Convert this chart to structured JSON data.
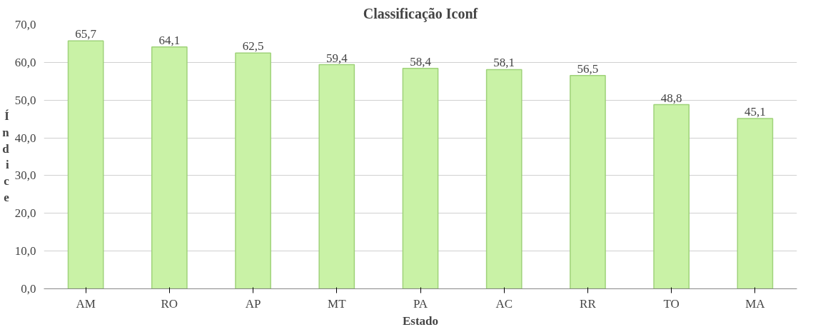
{
  "chart_data": {
    "type": "bar",
    "title": "Classificação Iconf",
    "xlabel": "Estado",
    "ylabel": "Índice",
    "categories": [
      "AM",
      "RO",
      "AP",
      "MT",
      "PA",
      "AC",
      "RR",
      "TO",
      "MA"
    ],
    "values": [
      65.7,
      64.1,
      62.5,
      59.4,
      58.4,
      58.1,
      56.5,
      48.8,
      45.1
    ],
    "value_labels": [
      "65,7",
      "64,1",
      "62,5",
      "59,4",
      "58,4",
      "58,1",
      "56,5",
      "48,8",
      "45,1"
    ],
    "color": "#c9f2a6",
    "ylim": [
      0,
      70
    ],
    "yticks": [
      {
        "value": 0,
        "label": "0,0"
      },
      {
        "value": 10,
        "label": "10,0"
      },
      {
        "value": 20,
        "label": "20,0"
      },
      {
        "value": 30,
        "label": "30,0"
      },
      {
        "value": 40,
        "label": "40,0"
      },
      {
        "value": 50,
        "label": "50,0"
      },
      {
        "value": 60,
        "label": "60,0"
      },
      {
        "value": 70,
        "label": "70,0"
      }
    ],
    "grid": "y"
  }
}
